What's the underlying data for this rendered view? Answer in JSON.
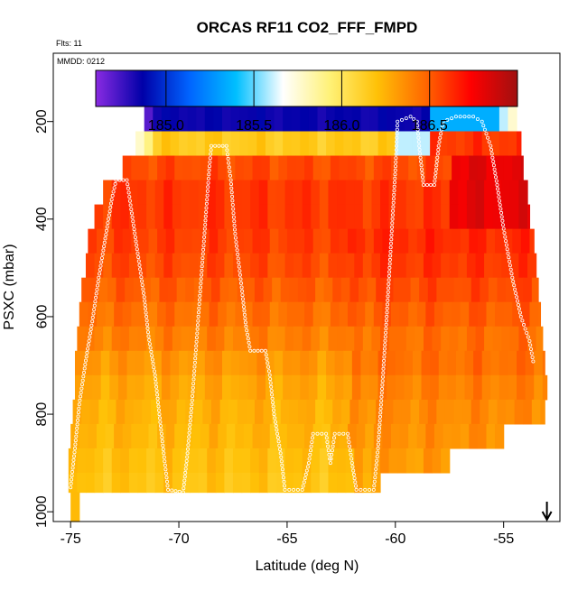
{
  "chart_data": {
    "type": "heatmap",
    "title": "ORCAS RF11 CO2_FFF_FMPD",
    "subtitle_flights": "Flts: 11",
    "subtitle_date": "MMDD: 0212",
    "xlabel": "Latitude (deg N)",
    "ylabel": "PSXC (mbar)",
    "xlim": [
      -75.8,
      -52.4
    ],
    "ylim": [
      1020,
      60
    ],
    "x_ticks": [
      -75,
      -70,
      -65,
      -60,
      -55
    ],
    "x_tick_labels": [
      "-75",
      "-70",
      "-65",
      "-60",
      "-55"
    ],
    "y_ticks": [
      200,
      400,
      600,
      800,
      1000
    ],
    "y_tick_labels": [
      "200",
      "400",
      "600",
      "800",
      "1000"
    ],
    "colorbar": {
      "range": [
        184.6,
        187.0
      ],
      "ticks": [
        185.0,
        185.5,
        186.0,
        186.5
      ],
      "tick_labels": [
        "185.0",
        "185.5",
        "186.0",
        "186.5"
      ],
      "colors": [
        "#8a2be2",
        "#0000a8",
        "#0064ff",
        "#00bfff",
        "#ffffff",
        "#fff176",
        "#ffc107",
        "#ff6a00",
        "#ff0000",
        "#a01010"
      ]
    },
    "bands": [
      {
        "p_top": 170,
        "p_bot": 220,
        "lat_min": -71.6,
        "lat_max": -54.4,
        "base": 184.8,
        "pattern": "top"
      },
      {
        "p_top": 220,
        "p_bot": 270,
        "lat_min": -72.0,
        "lat_max": -54.2,
        "base": 186.2,
        "pattern": "second"
      },
      {
        "p_top": 270,
        "p_bot": 320,
        "lat_min": -72.6,
        "lat_max": -54.1,
        "base": 186.55,
        "pattern": "upper"
      },
      {
        "p_top": 320,
        "p_bot": 370,
        "lat_min": -73.5,
        "lat_max": -53.9,
        "base": 186.6,
        "pattern": "upper"
      },
      {
        "p_top": 370,
        "p_bot": 420,
        "lat_min": -73.9,
        "lat_max": -53.8,
        "base": 186.6,
        "pattern": "upper"
      },
      {
        "p_top": 420,
        "p_bot": 470,
        "lat_min": -74.2,
        "lat_max": -53.6,
        "base": 186.58,
        "pattern": "mid"
      },
      {
        "p_top": 470,
        "p_bot": 520,
        "lat_min": -74.3,
        "lat_max": -53.5,
        "base": 186.55,
        "pattern": "mid"
      },
      {
        "p_top": 520,
        "p_bot": 570,
        "lat_min": -74.5,
        "lat_max": -53.4,
        "base": 186.5,
        "pattern": "mid"
      },
      {
        "p_top": 570,
        "p_bot": 620,
        "lat_min": -74.6,
        "lat_max": -53.3,
        "base": 186.45,
        "pattern": "mid"
      },
      {
        "p_top": 620,
        "p_bot": 670,
        "lat_min": -74.7,
        "lat_max": -53.2,
        "base": 186.4,
        "pattern": "mid"
      },
      {
        "p_top": 670,
        "p_bot": 720,
        "lat_min": -74.8,
        "lat_max": -53.1,
        "base": 186.35,
        "pattern": "low"
      },
      {
        "p_top": 720,
        "p_bot": 770,
        "lat_min": -74.8,
        "lat_max": -53.0,
        "base": 186.3,
        "pattern": "low"
      },
      {
        "p_top": 770,
        "p_bot": 820,
        "lat_min": -74.9,
        "lat_max": -53.1,
        "base": 186.27,
        "pattern": "low"
      },
      {
        "p_top": 820,
        "p_bot": 870,
        "lat_min": -75.0,
        "lat_max": -55.0,
        "base": 186.25,
        "pattern": "low"
      },
      {
        "p_top": 870,
        "p_bot": 920,
        "lat_min": -75.1,
        "lat_max": -57.5,
        "base": 186.22,
        "pattern": "low"
      },
      {
        "p_top": 920,
        "p_bot": 960,
        "lat_min": -75.1,
        "lat_max": -60.7,
        "base": 186.2,
        "pattern": "low"
      },
      {
        "p_top": 960,
        "p_bot": 1020,
        "lat_min": -75.0,
        "lat_max": -74.6,
        "base": 186.2,
        "pattern": "low"
      }
    ],
    "flight_track": [
      [
        -75.0,
        950
      ],
      [
        -74.8,
        870
      ],
      [
        -74.6,
        780
      ],
      [
        -74.3,
        690
      ],
      [
        -74.0,
        610
      ],
      [
        -73.7,
        520
      ],
      [
        -73.4,
        440
      ],
      [
        -73.1,
        360
      ],
      [
        -72.9,
        320
      ],
      [
        -72.4,
        320
      ],
      [
        -72.2,
        380
      ],
      [
        -71.9,
        470
      ],
      [
        -71.6,
        560
      ],
      [
        -71.4,
        640
      ],
      [
        -71.1,
        720
      ],
      [
        -70.9,
        800
      ],
      [
        -70.7,
        880
      ],
      [
        -70.5,
        955
      ],
      [
        -69.8,
        960
      ],
      [
        -69.6,
        880
      ],
      [
        -69.4,
        780
      ],
      [
        -69.2,
        660
      ],
      [
        -69.0,
        540
      ],
      [
        -68.8,
        420
      ],
      [
        -68.6,
        300
      ],
      [
        -68.5,
        250
      ],
      [
        -67.8,
        250
      ],
      [
        -67.6,
        320
      ],
      [
        -67.4,
        430
      ],
      [
        -67.1,
        540
      ],
      [
        -66.9,
        620
      ],
      [
        -66.7,
        670
      ],
      [
        -66.0,
        670
      ],
      [
        -65.8,
        720
      ],
      [
        -65.6,
        800
      ],
      [
        -65.3,
        880
      ],
      [
        -65.1,
        955
      ],
      [
        -64.3,
        955
      ],
      [
        -64.0,
        900
      ],
      [
        -63.8,
        840
      ],
      [
        -63.2,
        840
      ],
      [
        -63.0,
        900
      ],
      [
        -62.8,
        840
      ],
      [
        -62.2,
        840
      ],
      [
        -62.0,
        900
      ],
      [
        -61.8,
        955
      ],
      [
        -61.0,
        955
      ],
      [
        -60.8,
        870
      ],
      [
        -60.6,
        740
      ],
      [
        -60.4,
        600
      ],
      [
        -60.2,
        450
      ],
      [
        -60.0,
        300
      ],
      [
        -59.9,
        200
      ],
      [
        -59.3,
        190
      ],
      [
        -59.0,
        200
      ],
      [
        -58.9,
        250
      ],
      [
        -58.7,
        330
      ],
      [
        -58.2,
        330
      ],
      [
        -58.0,
        250
      ],
      [
        -57.8,
        200
      ],
      [
        -57.2,
        190
      ],
      [
        -56.4,
        190
      ],
      [
        -56.0,
        200
      ],
      [
        -55.6,
        250
      ],
      [
        -55.3,
        330
      ],
      [
        -55.0,
        420
      ],
      [
        -54.6,
        520
      ],
      [
        -54.2,
        600
      ],
      [
        -53.8,
        650
      ],
      [
        -53.6,
        700
      ]
    ],
    "arrow_lat": -53.0
  }
}
